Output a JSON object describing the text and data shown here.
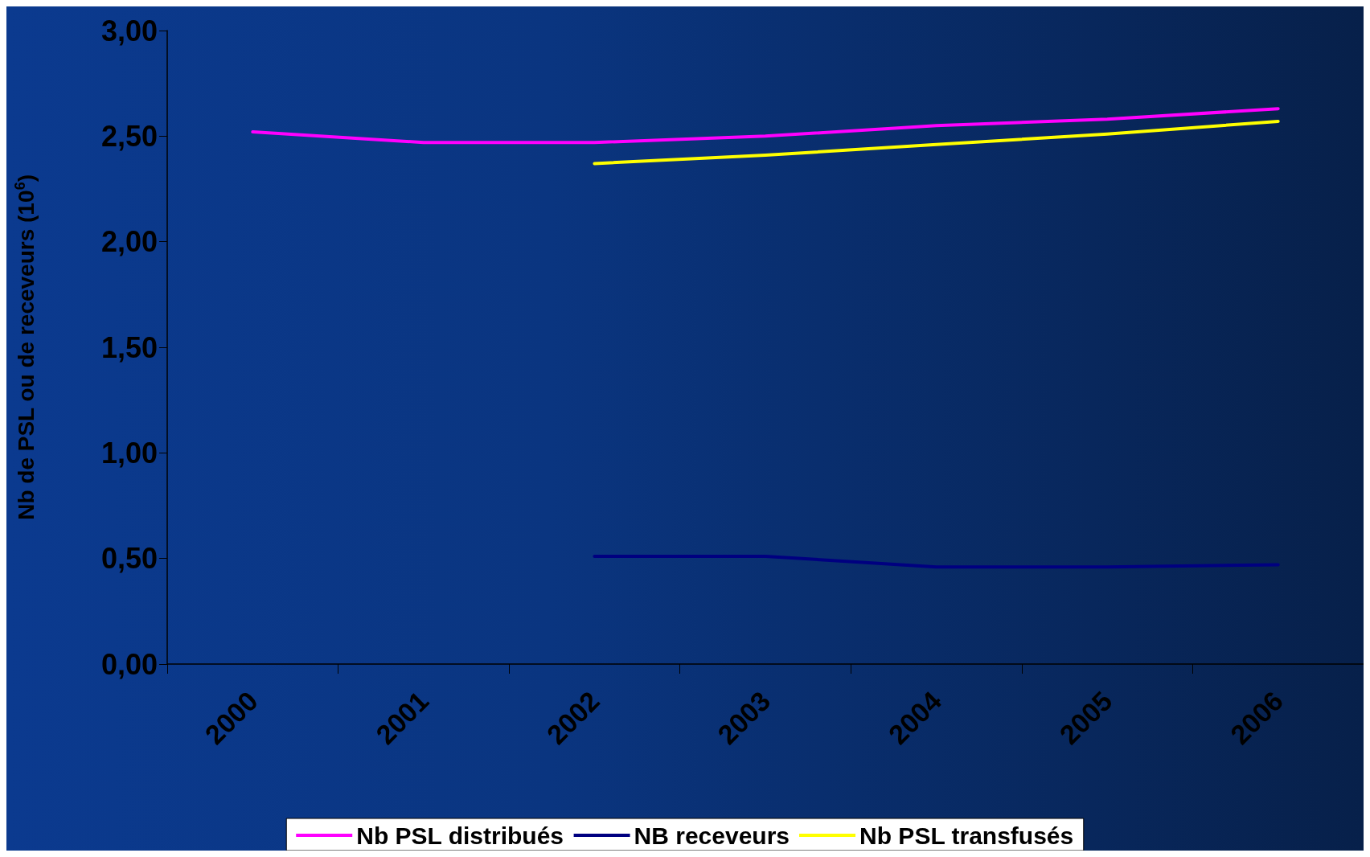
{
  "chart_data": {
    "type": "line",
    "ylabel": "Nb de PSL ou de receveurs (10$^{6}$)",
    "categories": [
      "2000",
      "2001",
      "2002",
      "2003",
      "2004",
      "2005",
      "2006"
    ],
    "series": [
      {
        "name": "Nb PSL distribués",
        "color": "#ff00ff",
        "values": [
          2.52,
          2.47,
          2.47,
          2.5,
          2.55,
          2.58,
          2.63
        ]
      },
      {
        "name": "NB receveurs",
        "color": "#000080",
        "values": [
          null,
          null,
          0.51,
          0.51,
          0.46,
          0.46,
          0.47
        ]
      },
      {
        "name": "Nb PSL transfusés",
        "color": "#ffff00",
        "values": [
          null,
          null,
          2.37,
          2.41,
          2.46,
          2.51,
          2.57
        ]
      }
    ],
    "ylim": [
      0,
      3
    ],
    "yticks": [
      {
        "value": 0,
        "label": "0,00"
      },
      {
        "value": 0.5,
        "label": "0,50"
      },
      {
        "value": 1,
        "label": "1,00"
      },
      {
        "value": 1.5,
        "label": "1,50"
      },
      {
        "value": 2,
        "label": "2,00"
      },
      {
        "value": 2.5,
        "label": "2,50"
      },
      {
        "value": 3,
        "label": "3,00"
      }
    ],
    "grid": false,
    "legend": "bottom",
    "marker": "none",
    "line_style": "solid"
  }
}
